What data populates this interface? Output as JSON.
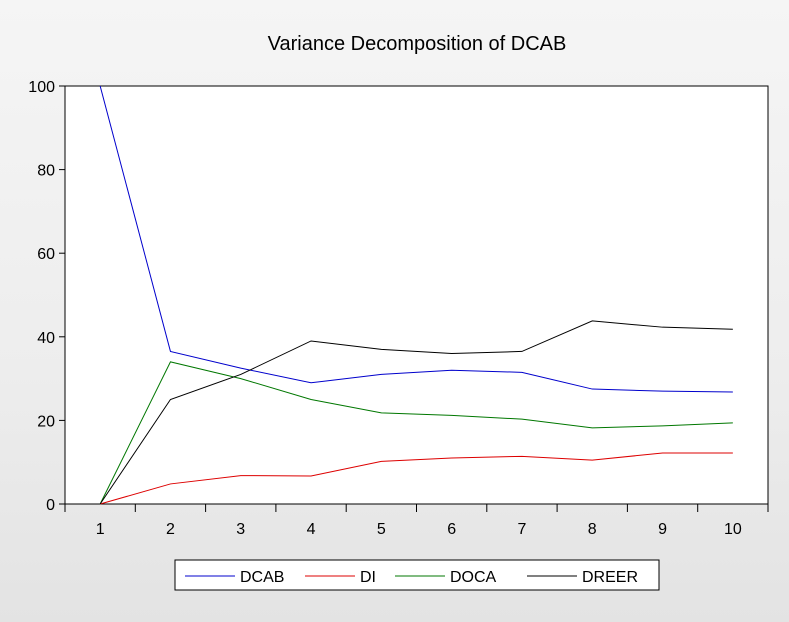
{
  "chart_data": {
    "type": "line",
    "title": "Variance Decomposition of DCAB",
    "x": [
      1,
      2,
      3,
      4,
      5,
      6,
      7,
      8,
      9,
      10
    ],
    "xlim": [
      0.5,
      10.5
    ],
    "ylim": [
      0,
      100
    ],
    "yticks": [
      0,
      20,
      40,
      60,
      80,
      100
    ],
    "grid": false,
    "legend_position": "bottom",
    "series": [
      {
        "name": "DCAB",
        "color": "#0000cc",
        "values": [
          100,
          36.5,
          32.5,
          29,
          31,
          32,
          31.5,
          27.5,
          27,
          26.8
        ]
      },
      {
        "name": "DI",
        "color": "#dd0000",
        "values": [
          0,
          4.8,
          6.8,
          6.7,
          10.2,
          11,
          11.4,
          10.5,
          12.2,
          12.2
        ]
      },
      {
        "name": "DOCA",
        "color": "#007700",
        "values": [
          0,
          34,
          30,
          25,
          21.8,
          21.2,
          20.3,
          18.2,
          18.7,
          19.4
        ]
      },
      {
        "name": "DREER",
        "color": "#000000",
        "values": [
          0,
          25,
          31,
          39,
          37,
          36,
          36.5,
          43.8,
          42.3,
          41.8
        ]
      }
    ]
  }
}
